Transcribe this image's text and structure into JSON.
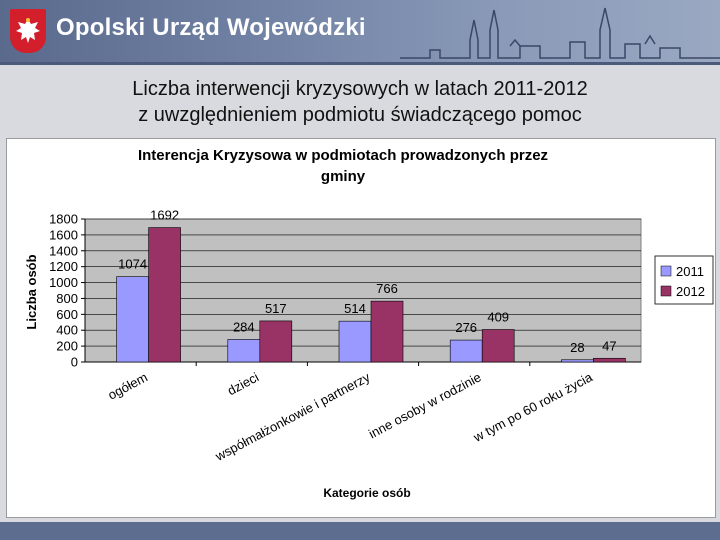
{
  "header": {
    "org_name": "Opolski Urząd Wojewódzki",
    "colors": {
      "bar": "#6c7da0",
      "emblem": "#d21f2b"
    }
  },
  "slide": {
    "title_line1": "Liczba interwencji kryzysowych w latach 2011-2012",
    "title_line2": "z uwzględnieniem podmiotu świadczącego pomoc"
  },
  "chart_data": {
    "type": "bar",
    "title": "Interencja Kryzysowa w podmiotach prowadzonych przez gminy",
    "title_lines": [
      "Interencja Kryzysowa w podmiotach prowadzonych przez",
      "gminy"
    ],
    "xlabel": "Kategorie osób",
    "ylabel": "Liczba osób",
    "categories": [
      "ogółem",
      "dzieci",
      "współmałżonkowie i partnerzy",
      "inne osoby w rodzinie",
      "w tym po 60 roku życia"
    ],
    "series": [
      {
        "name": "2011",
        "values": [
          1074,
          284,
          514,
          276,
          28
        ],
        "color": "#9999ff"
      },
      {
        "name": "2012",
        "values": [
          1692,
          517,
          766,
          409,
          47
        ],
        "color": "#993366"
      }
    ],
    "ylim": [
      0,
      1800
    ],
    "yticks": [
      0,
      200,
      400,
      600,
      800,
      1000,
      1200,
      1400,
      1600,
      1800
    ],
    "grid": true,
    "legend_position": "right",
    "plot_background": "#c0c0c0"
  }
}
